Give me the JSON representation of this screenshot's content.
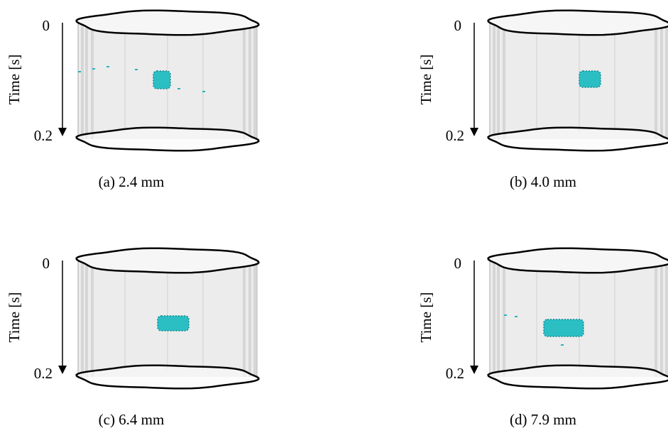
{
  "panels": [
    {
      "caption": "(a) 2.4 mm",
      "y_label": "Time [s]",
      "ticks": [
        "0",
        "0.2"
      ]
    },
    {
      "caption": "(b) 4.0 mm",
      "y_label": "Time [s]",
      "ticks": [
        "0",
        "0.2"
      ]
    },
    {
      "caption": "(c) 6.4 mm",
      "y_label": "Time [s]",
      "ticks": [
        "0",
        "0.2"
      ]
    },
    {
      "caption": "(d) 7.9 mm",
      "y_label": "Time [s]",
      "ticks": [
        "0",
        "0.2"
      ]
    }
  ]
}
